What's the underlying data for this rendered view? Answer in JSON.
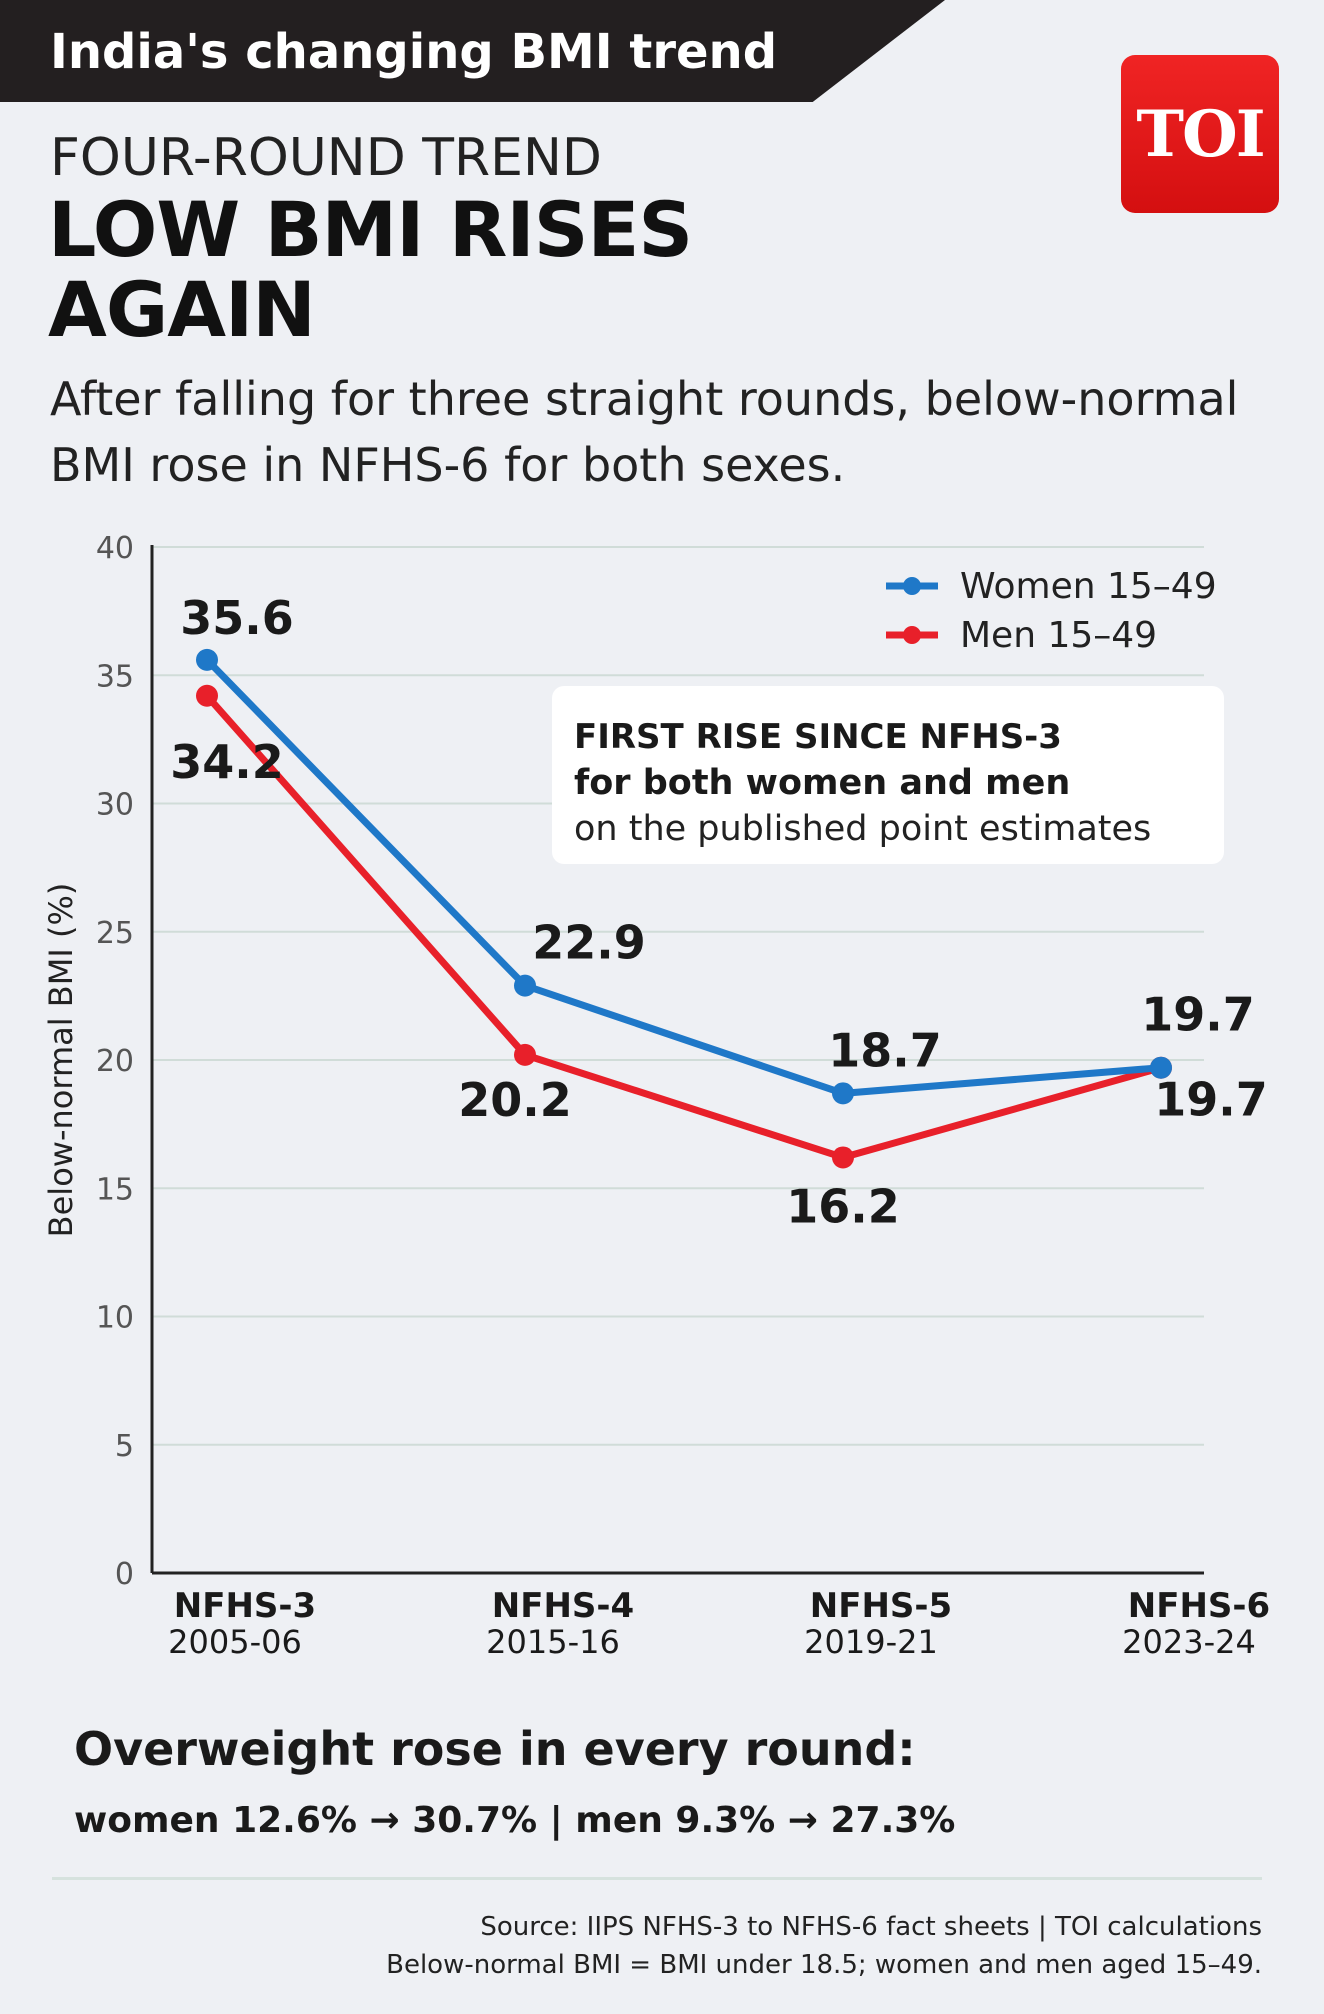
{
  "header": {
    "banner_title": "India's changing BMI trend",
    "logo_text": "TOI",
    "kicker": "FOUR-ROUND TREND",
    "headline": "LOW BMI RISES AGAIN",
    "subtitle": "After falling for three straight rounds, below-normal BMI rose in NFHS-6 for both sexes."
  },
  "chart_data": {
    "type": "line",
    "title": "LOW BMI RISES AGAIN",
    "xlabel": "",
    "ylabel": "Below-normal BMI (%)",
    "ylim": [
      0,
      40
    ],
    "yticks": [
      0,
      5,
      10,
      15,
      20,
      25,
      30,
      35,
      40
    ],
    "categories": [
      "NFHS-3",
      "NFHS-4",
      "NFHS-5",
      "NFHS-6"
    ],
    "category_years": [
      "2005-06",
      "2015-16",
      "2019-21",
      "2023-24"
    ],
    "grid": true,
    "legend_position": "top-right",
    "series": [
      {
        "name": "Women 15–49",
        "color": "#1f78c8",
        "values": [
          35.6,
          22.9,
          18.7,
          19.7
        ],
        "labels": [
          "35.6",
          "22.9",
          "18.7",
          "19.7"
        ]
      },
      {
        "name": "Men 15–49",
        "color": "#e8202a",
        "values": [
          34.2,
          20.2,
          16.2,
          19.7
        ],
        "labels": [
          "34.2",
          "20.2",
          "16.2",
          "19.7"
        ]
      }
    ],
    "annotation": {
      "line1": "FIRST RISE SINCE NFHS-3",
      "line2": "for both women and men",
      "line3": "on the published point estimates"
    }
  },
  "overweight": {
    "headline": "Overweight rose in every round:",
    "detail": "women 12.6% → 30.7% | men 9.3% → 27.3%"
  },
  "footer": {
    "source": "Source: IIPS NFHS-3 to NFHS-6 fact sheets | TOI calculations",
    "note": "Below-normal BMI = BMI under 18.5; women and men aged 15–49."
  }
}
